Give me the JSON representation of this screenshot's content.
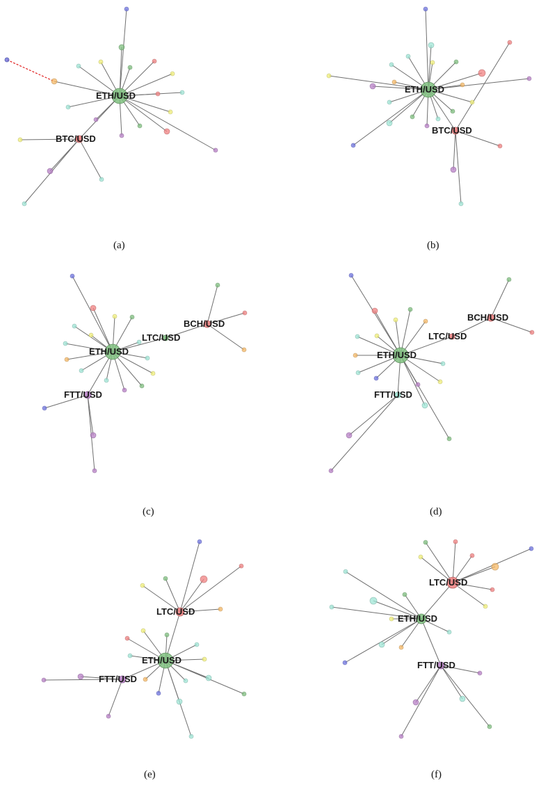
{
  "palette": {
    "green": "#7fbf7f",
    "red": "#f08080",
    "yellow": "#f2f07a",
    "cyan": "#9fe6d6",
    "orange": "#f5b866",
    "purple": "#b77fc6",
    "blue": "#6f74e0"
  },
  "panels": [
    {
      "caption": "(a)",
      "hubs": [
        {
          "label": "ETH/USD",
          "color": "green",
          "r": 11
        },
        {
          "label": "BTC/USD",
          "color": "red",
          "r": 5
        }
      ]
    },
    {
      "caption": "(b)",
      "hubs": [
        {
          "label": "ETH/USD",
          "color": "green",
          "r": 11
        },
        {
          "label": "BTC/USD",
          "color": "red",
          "r": 5
        }
      ]
    },
    {
      "caption": "(c)",
      "hubs": [
        {
          "label": "ETH/USD",
          "color": "green",
          "r": 11
        },
        {
          "label": "LTC/USD",
          "color": "green",
          "r": 4
        },
        {
          "label": "BCH/USD",
          "color": "red",
          "r": 5
        },
        {
          "label": "FTT/USD",
          "color": "purple",
          "r": 5
        }
      ]
    },
    {
      "caption": "(d)",
      "hubs": [
        {
          "label": "ETH/USD",
          "color": "green",
          "r": 11
        },
        {
          "label": "LTC/USD",
          "color": "red",
          "r": 4
        },
        {
          "label": "BCH/USD",
          "color": "red",
          "r": 5
        },
        {
          "label": "FTT/USD",
          "color": "cyan",
          "r": 4
        }
      ]
    },
    {
      "caption": "(e)",
      "hubs": [
        {
          "label": "ETH/USD",
          "color": "green",
          "r": 11
        },
        {
          "label": "LTC/USD",
          "color": "red",
          "r": 6
        },
        {
          "label": "FTT/USD",
          "color": "purple",
          "r": 5
        }
      ]
    },
    {
      "caption": "(f)",
      "hubs": [
        {
          "label": "LTC/USD",
          "color": "red",
          "r": 8
        },
        {
          "label": "ETH/USD",
          "color": "green",
          "r": 7
        },
        {
          "label": "FTT/USD",
          "color": "purple",
          "r": 5
        }
      ]
    }
  ]
}
